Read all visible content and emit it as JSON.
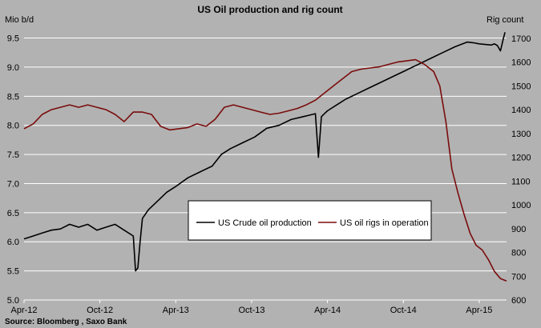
{
  "chart_data": {
    "type": "line",
    "title": "US Oil production and rig count",
    "source": "Source: Bloomberg , Saxo Bank",
    "x_tick_labels": [
      "Apr-12",
      "Oct-12",
      "Apr-13",
      "Oct-13",
      "Apr-14",
      "Oct-14",
      "Apr-15"
    ],
    "x_range": [
      0,
      3.18
    ],
    "left_axis": {
      "label": "Mio b/d",
      "ylim": [
        5.0,
        9.7
      ],
      "ticks": [
        "5.0",
        "5.5",
        "6.0",
        "6.5",
        "7.0",
        "7.5",
        "8.0",
        "8.5",
        "9.0",
        "9.5"
      ]
    },
    "right_axis": {
      "label": "Rig count",
      "ylim": [
        600,
        1750
      ],
      "ticks": [
        "600",
        "700",
        "800",
        "900",
        "1000",
        "1100",
        "1200",
        "1300",
        "1400",
        "1500",
        "1600",
        "1700"
      ]
    },
    "grid": true,
    "legend_position": "center-right",
    "series": [
      {
        "name": "US Crude oil production",
        "axis": "left",
        "color": "#000000",
        "x": [
          0,
          0.06,
          0.12,
          0.18,
          0.24,
          0.3,
          0.36,
          0.42,
          0.48,
          0.54,
          0.6,
          0.66,
          0.72,
          0.735,
          0.75,
          0.765,
          0.78,
          0.82,
          0.88,
          0.94,
          1.0,
          1.08,
          1.16,
          1.24,
          1.3,
          1.36,
          1.44,
          1.52,
          1.6,
          1.68,
          1.76,
          1.84,
          1.92,
          1.94,
          1.96,
          1.98,
          2.0,
          2.06,
          2.12,
          2.2,
          2.28,
          2.36,
          2.44,
          2.52,
          2.6,
          2.68,
          2.76,
          2.84,
          2.92,
          2.96,
          3.0,
          3.04,
          3.08,
          3.1,
          3.12,
          3.14,
          3.16,
          3.17
        ],
        "values": [
          6.05,
          6.1,
          6.15,
          6.2,
          6.22,
          6.3,
          6.25,
          6.3,
          6.2,
          6.25,
          6.3,
          6.2,
          6.1,
          5.5,
          5.55,
          6.0,
          6.4,
          6.55,
          6.7,
          6.85,
          6.95,
          7.1,
          7.2,
          7.3,
          7.5,
          7.6,
          7.7,
          7.8,
          7.95,
          8.0,
          8.1,
          8.15,
          8.2,
          7.45,
          8.15,
          8.2,
          8.25,
          8.35,
          8.45,
          8.55,
          8.65,
          8.75,
          8.85,
          8.95,
          9.05,
          9.15,
          9.25,
          9.35,
          9.43,
          9.42,
          9.4,
          9.39,
          9.38,
          9.4,
          9.37,
          9.28,
          9.5,
          9.6
        ]
      },
      {
        "name": "US oil rigs in operation",
        "axis": "right",
        "color": "#7a0c0c",
        "x": [
          0,
          0.06,
          0.12,
          0.18,
          0.24,
          0.3,
          0.36,
          0.42,
          0.48,
          0.54,
          0.6,
          0.66,
          0.72,
          0.78,
          0.84,
          0.9,
          0.96,
          1.02,
          1.08,
          1.14,
          1.2,
          1.26,
          1.32,
          1.38,
          1.44,
          1.5,
          1.56,
          1.62,
          1.68,
          1.74,
          1.8,
          1.86,
          1.92,
          1.98,
          2.04,
          2.1,
          2.16,
          2.22,
          2.28,
          2.34,
          2.4,
          2.46,
          2.52,
          2.58,
          2.64,
          2.7,
          2.74,
          2.78,
          2.82,
          2.86,
          2.9,
          2.94,
          2.98,
          3.02,
          3.06,
          3.1,
          3.14,
          3.18
        ],
        "values": [
          1320,
          1340,
          1380,
          1400,
          1410,
          1420,
          1410,
          1420,
          1410,
          1400,
          1380,
          1350,
          1390,
          1390,
          1380,
          1330,
          1315,
          1320,
          1325,
          1340,
          1330,
          1360,
          1410,
          1420,
          1410,
          1400,
          1390,
          1380,
          1385,
          1395,
          1405,
          1420,
          1440,
          1470,
          1500,
          1530,
          1560,
          1570,
          1575,
          1580,
          1590,
          1600,
          1605,
          1610,
          1590,
          1560,
          1500,
          1350,
          1150,
          1050,
          960,
          880,
          830,
          810,
          770,
          720,
          690,
          680
        ]
      }
    ]
  }
}
